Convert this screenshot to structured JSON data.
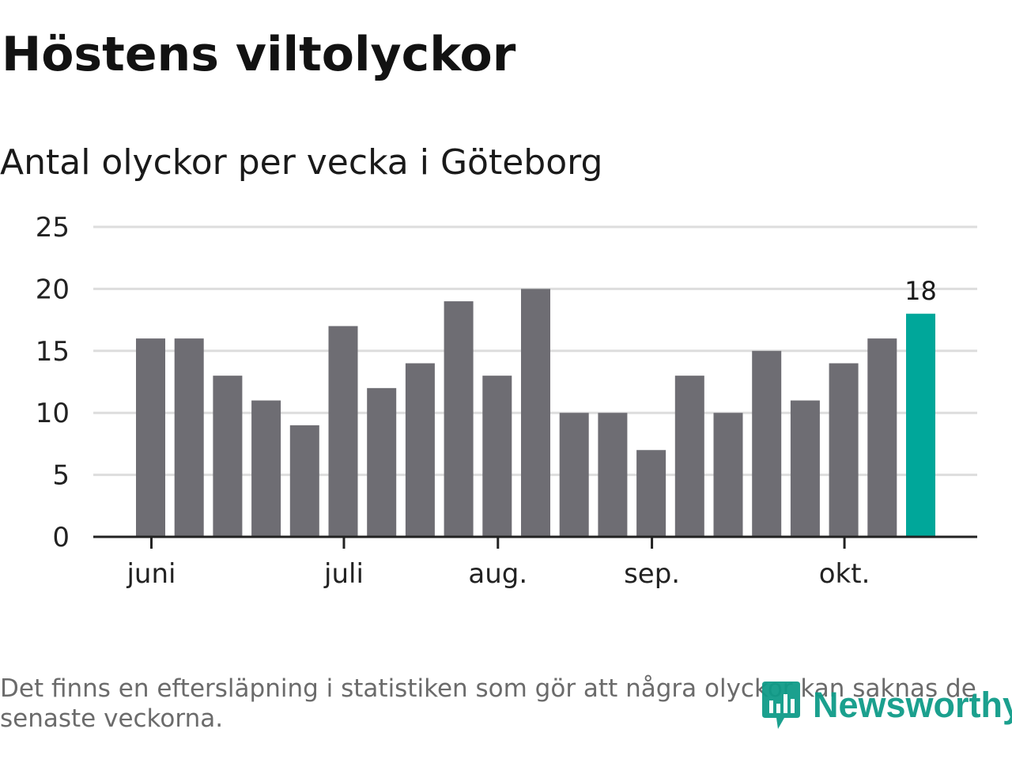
{
  "title": "Höstens viltolyckor",
  "subtitle": "Antal olyckor per vecka i Göteborg",
  "footnote": "Det finns en eftersläpning i statistiken som gör att några olyckor kan saknas de senaste veckorna.",
  "logo": {
    "text": "Newsworthy",
    "icon": "bar-chart-bubble-icon"
  },
  "colors": {
    "bar": "#6e6d73",
    "highlight": "#00a79a",
    "grid": "#dddddd",
    "axis": "#222222"
  },
  "chart_data": {
    "type": "bar",
    "title": "Höstens viltolyckor",
    "subtitle": "Antal olyckor per vecka i Göteborg",
    "xlabel": "",
    "ylabel": "",
    "ylim": [
      0,
      25
    ],
    "yticks": [
      0,
      5,
      10,
      15,
      20,
      25
    ],
    "values": [
      16,
      16,
      13,
      11,
      9,
      17,
      12,
      14,
      19,
      13,
      20,
      10,
      10,
      7,
      13,
      10,
      15,
      11,
      14,
      16,
      18
    ],
    "highlight_index": 20,
    "highlight_label": "18",
    "month_ticks": [
      {
        "label": "juni",
        "week_position": 0.4
      },
      {
        "label": "juli",
        "week_position": 5.4
      },
      {
        "label": "aug.",
        "week_position": 9.4
      },
      {
        "label": "sep.",
        "week_position": 13.4
      },
      {
        "label": "okt.",
        "week_position": 18.4
      }
    ],
    "grid": true
  }
}
